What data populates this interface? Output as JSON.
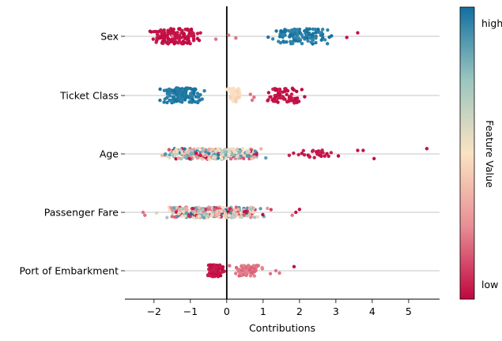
{
  "chart_data": {
    "type": "scatter",
    "title": "",
    "xlabel": "Contributions",
    "ylabel": "",
    "xlim": [
      -2.8,
      5.85
    ],
    "xticks": [
      -2,
      -1,
      0,
      1,
      2,
      3,
      4,
      5
    ],
    "xtick_labels": [
      "−2",
      "−1",
      "0",
      "1",
      "2",
      "3",
      "4",
      "5"
    ],
    "grid": "horizontal lines at each feature",
    "zero_line": 0,
    "colorbar": {
      "label": "Feature Value",
      "high_label": "high",
      "low_label": "low",
      "colors": [
        "#c0063f",
        "#e88e95",
        "#fbe3c2",
        "#9bc6c0",
        "#1170a0"
      ]
    },
    "features": [
      {
        "name": "Sex",
        "clusters": [
          {
            "x_range": [
              -2.4,
              -0.5
            ],
            "count": 150,
            "color_range": [
              0.0,
              0.04
            ],
            "jitter": 0.13
          },
          {
            "x_range": [
              0.9,
              3.2
            ],
            "count": 120,
            "color_range": [
              0.93,
              1.0
            ],
            "jitter": 0.13
          }
        ],
        "points": [
          [
            -1.5,
            0.0
          ],
          [
            -0.3,
            0.05
          ],
          [
            0.05,
            -0.02
          ],
          [
            0.25,
            0.03
          ],
          [
            3.6,
            -0.06
          ],
          [
            3.3,
            0.02
          ]
        ]
      },
      {
        "name": "Ticket Class",
        "clusters": [
          {
            "x_range": [
              -2.1,
              -0.4
            ],
            "count": 140,
            "color_range": [
              0.94,
              1.0
            ],
            "jitter": 0.13
          },
          {
            "x_range": [
              -0.05,
              0.5
            ],
            "count": 60,
            "color_range": [
              0.44,
              0.52
            ],
            "jitter": 0.12
          },
          {
            "x_range": [
              0.8,
              2.4
            ],
            "count": 70,
            "color_range": [
              0.0,
              0.05
            ],
            "jitter": 0.13
          }
        ],
        "points": [
          [
            0.75,
            0.03
          ],
          [
            0.65,
            -0.02
          ],
          [
            0.7,
            0.08
          ]
        ]
      },
      {
        "name": "Age",
        "clusters": [
          {
            "x_range": [
              -2.3,
              1.5
            ],
            "count": 320,
            "color_range": [
              0.0,
              1.0
            ],
            "jitter": 0.09
          },
          {
            "x_range": [
              1.2,
              3.6
            ],
            "count": 26,
            "color_range": [
              0.0,
              0.05
            ],
            "jitter": 0.07
          }
        ],
        "points": [
          [
            5.5,
            -0.09
          ],
          [
            4.05,
            0.08
          ],
          [
            3.75,
            -0.06
          ],
          [
            3.6,
            -0.06
          ],
          [
            2.6,
            0.04
          ],
          [
            2.8,
            0.04
          ]
        ]
      },
      {
        "name": "Passenger Fare",
        "clusters": [
          {
            "x_range": [
              -2.2,
              1.5
            ],
            "count": 300,
            "color_range": [
              0.0,
              1.0
            ],
            "jitter": 0.09
          }
        ],
        "points": [
          [
            -2.3,
            0.0
          ],
          [
            -2.25,
            0.05
          ],
          [
            1.8,
            0.05
          ],
          [
            1.9,
            0.0
          ],
          [
            2.0,
            -0.05
          ],
          [
            -0.5,
            -0.05
          ]
        ]
      },
      {
        "name": "Port of Embarkment",
        "clusters": [
          {
            "x_range": [
              -0.65,
              0.0
            ],
            "count": 90,
            "color_range": [
              0.0,
              0.05
            ],
            "jitter": 0.1
          },
          {
            "x_range": [
              0.0,
              1.1
            ],
            "count": 80,
            "color_range": [
              0.16,
              0.24
            ],
            "jitter": 0.09
          }
        ],
        "points": [
          [
            1.35,
            0.0
          ],
          [
            1.45,
            0.04
          ],
          [
            1.85,
            -0.07
          ],
          [
            1.2,
            0.05
          ]
        ]
      }
    ]
  }
}
